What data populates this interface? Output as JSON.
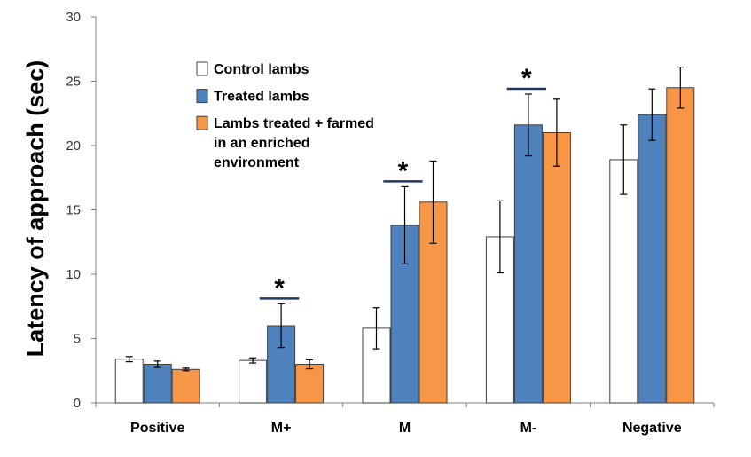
{
  "chart_data": {
    "type": "bar",
    "title": "",
    "xlabel": "",
    "ylabel": "Latency of approach (sec)",
    "ylim": [
      0,
      30
    ],
    "yticks": [
      0,
      5,
      10,
      15,
      20,
      25,
      30
    ],
    "categories": [
      "Positive",
      "M+",
      "M",
      "M-",
      "Negative"
    ],
    "grid": false,
    "legend_position": "top-left",
    "series": [
      {
        "name": "Control lambs",
        "color": "#ffffff",
        "values": [
          3.4,
          3.3,
          5.8,
          12.9,
          18.9
        ],
        "errors": [
          0.2,
          0.2,
          1.6,
          2.8,
          2.7
        ]
      },
      {
        "name": "Treated lambs",
        "color": "#4f81bd",
        "values": [
          3.0,
          6.0,
          13.8,
          21.6,
          22.4
        ],
        "errors": [
          0.25,
          1.7,
          3.0,
          2.4,
          2.0
        ]
      },
      {
        "name": "Lambs treated + farmed in an enriched environment",
        "legend_lines": [
          "Lambs treated + farmed",
          "in an enriched",
          "environment"
        ],
        "color": "#f79646",
        "values": [
          2.6,
          3.0,
          15.6,
          21.0,
          24.5
        ],
        "errors": [
          0.1,
          0.35,
          3.2,
          2.6,
          1.6
        ]
      }
    ],
    "significance": [
      {
        "category": "M+",
        "label": "*"
      },
      {
        "category": "M",
        "label": "*"
      },
      {
        "category": "M-",
        "label": "*"
      }
    ]
  }
}
